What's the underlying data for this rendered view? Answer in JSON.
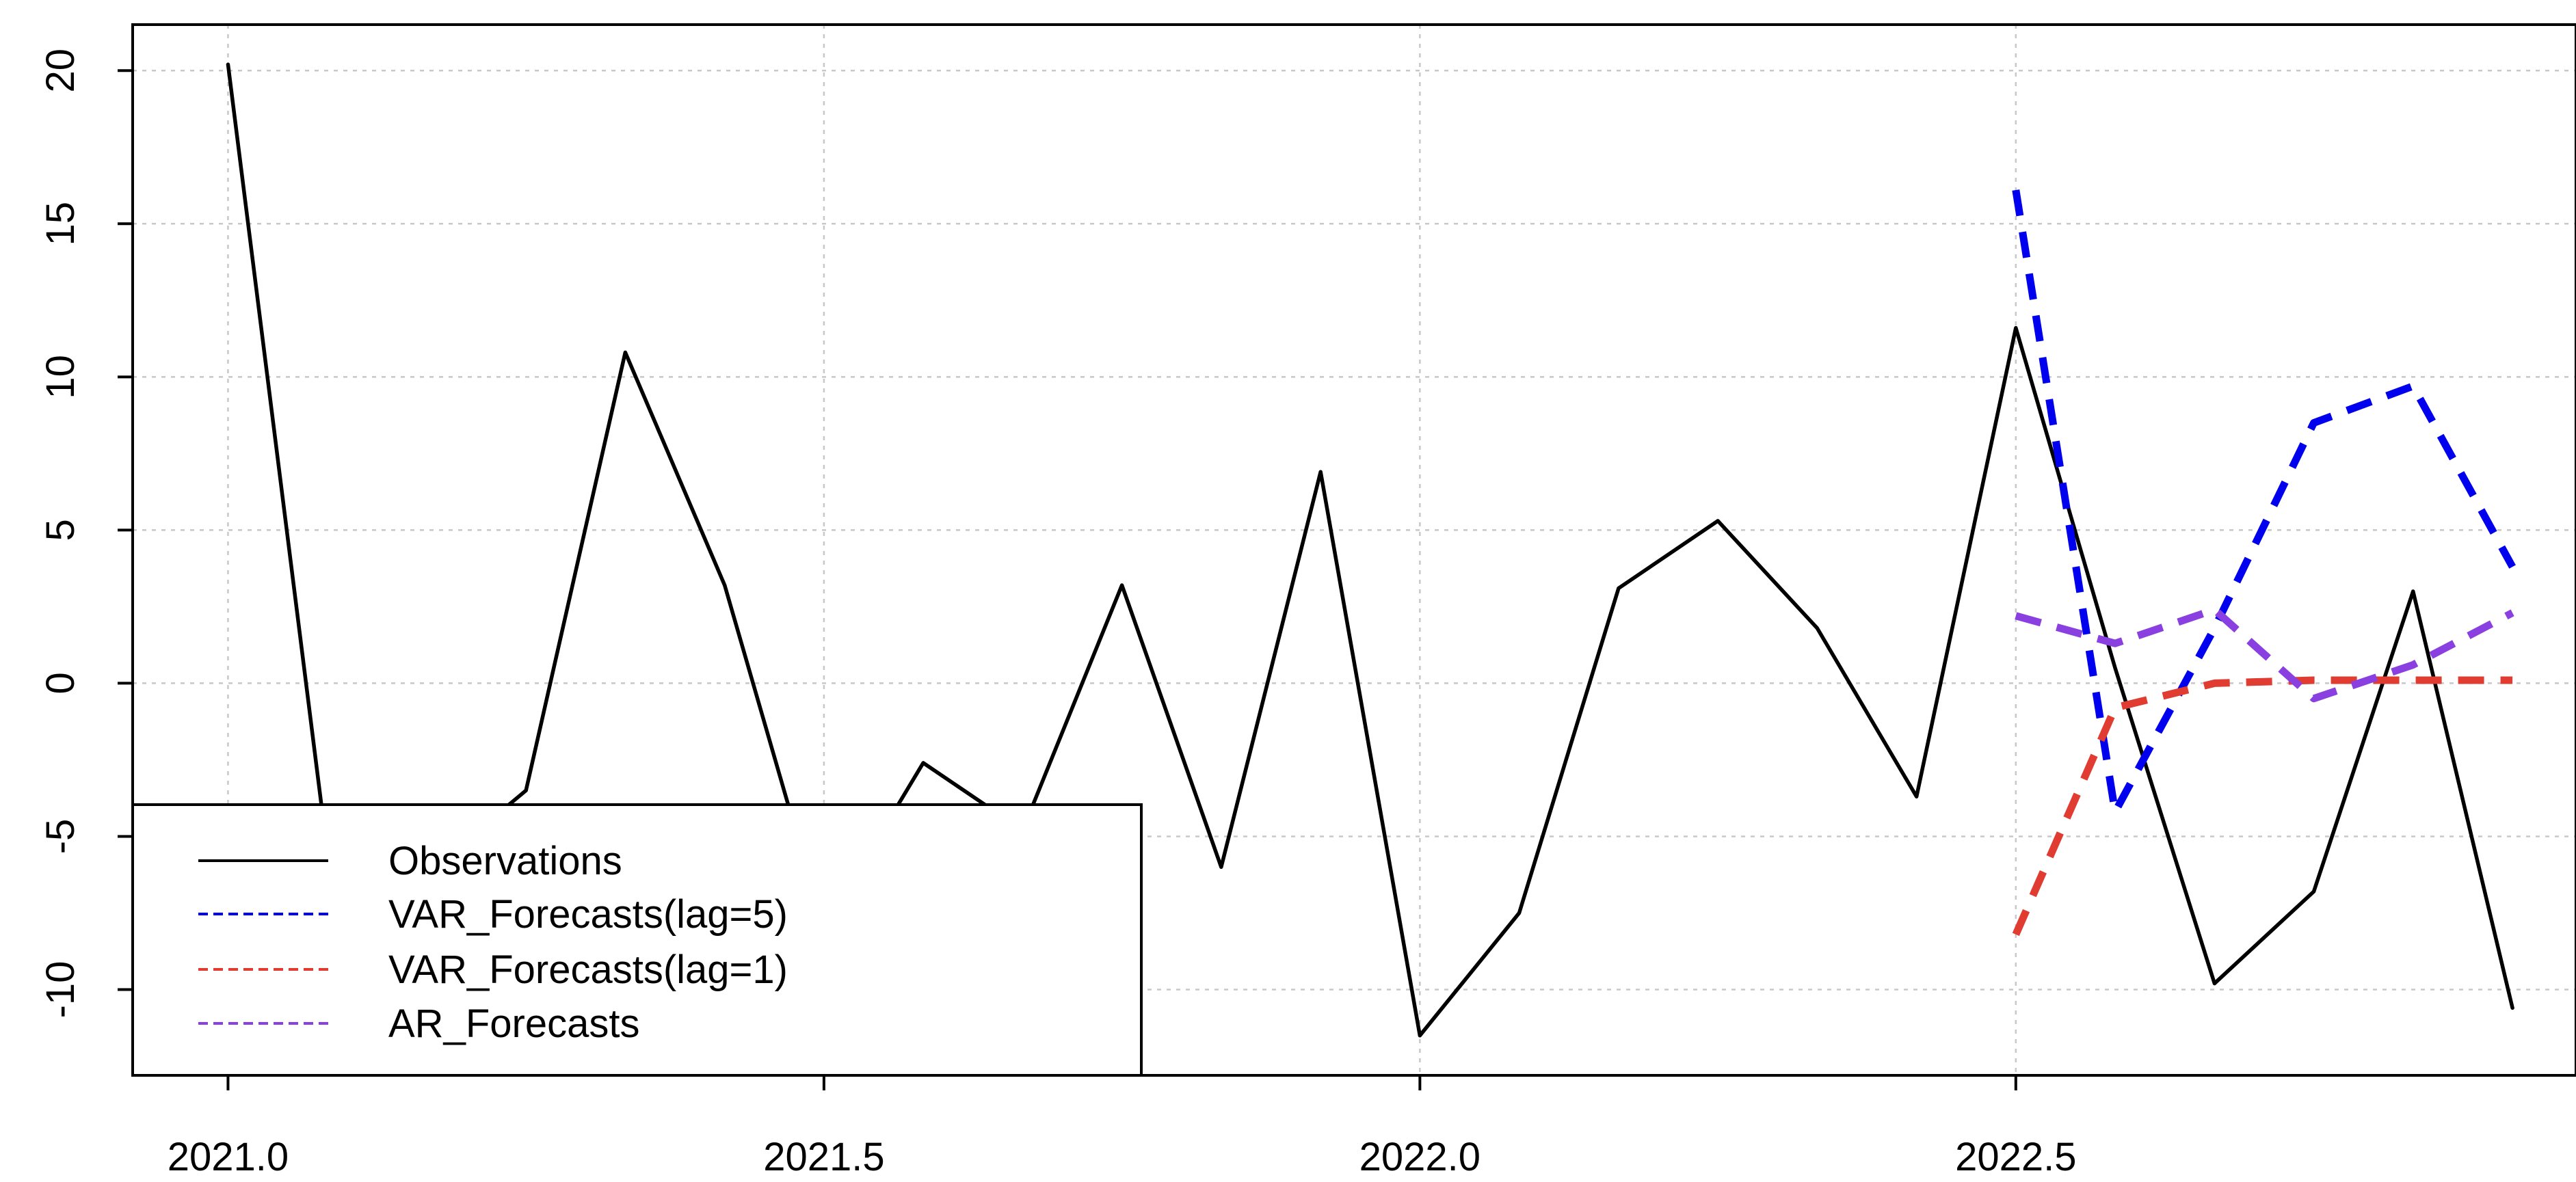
{
  "chart_data": {
    "type": "line",
    "title": "",
    "xlabel": "",
    "ylabel": "",
    "xlim": [
      2020.92,
      2022.97
    ],
    "ylim": [
      -12.8,
      21.5
    ],
    "x_ticks": [
      {
        "value": 2021.0,
        "label": "2021.0"
      },
      {
        "value": 2021.5,
        "label": "2021.5"
      },
      {
        "value": 2022.0,
        "label": "2022.0"
      },
      {
        "value": 2022.5,
        "label": "2022.5"
      }
    ],
    "y_ticks": [
      {
        "value": -10,
        "label": "-10"
      },
      {
        "value": -5,
        "label": "-5"
      },
      {
        "value": 0,
        "label": "0"
      },
      {
        "value": 5,
        "label": "5"
      },
      {
        "value": 10,
        "label": "10"
      },
      {
        "value": 15,
        "label": "15"
      },
      {
        "value": 20,
        "label": "20"
      }
    ],
    "grid": true,
    "legend_position": "bottom-left",
    "series": [
      {
        "name": "Observations",
        "color": "#000000",
        "style": "solid",
        "x": [
          2021.0,
          2021.0833,
          2021.1667,
          2021.25,
          2021.3333,
          2021.4167,
          2021.5,
          2021.5833,
          2021.6667,
          2021.75,
          2021.8333,
          2021.9167,
          2022.0,
          2022.0833,
          2022.1667,
          2022.25,
          2022.3333,
          2022.4167,
          2022.5,
          2022.5833,
          2022.6667,
          2022.75,
          2022.8333,
          2022.9167
        ],
        "y": [
          20.2,
          -5.5,
          -6.2,
          -3.5,
          10.8,
          3.2,
          -8.0,
          -2.6,
          -4.8,
          3.2,
          -6.0,
          6.9,
          -11.5,
          -7.5,
          3.1,
          5.3,
          1.8,
          -3.7,
          11.6,
          0.5,
          -9.8,
          -6.8,
          3.0,
          -10.6
        ]
      },
      {
        "name": "VAR_Forecasts(lag=5)",
        "color": "#0000ee",
        "style": "dashed",
        "x": [
          2022.5,
          2022.5833,
          2022.6667,
          2022.75,
          2022.8333,
          2022.9167
        ],
        "y": [
          16.1,
          -4.2,
          1.8,
          8.5,
          9.7,
          3.8
        ]
      },
      {
        "name": "VAR_Forecasts(lag=1)",
        "color": "#e03c31",
        "style": "dashed",
        "x": [
          2022.5,
          2022.5833,
          2022.6667,
          2022.75,
          2022.8333,
          2022.9167
        ],
        "y": [
          -8.2,
          -0.8,
          0.0,
          0.1,
          0.1,
          0.1
        ]
      },
      {
        "name": "AR_Forecasts",
        "color": "#8a3fe0",
        "style": "dashed",
        "x": [
          2022.5,
          2022.5833,
          2022.6667,
          2022.75,
          2022.8333,
          2022.9167
        ],
        "y": [
          2.2,
          1.3,
          2.4,
          -0.5,
          0.6,
          2.3
        ]
      }
    ]
  }
}
